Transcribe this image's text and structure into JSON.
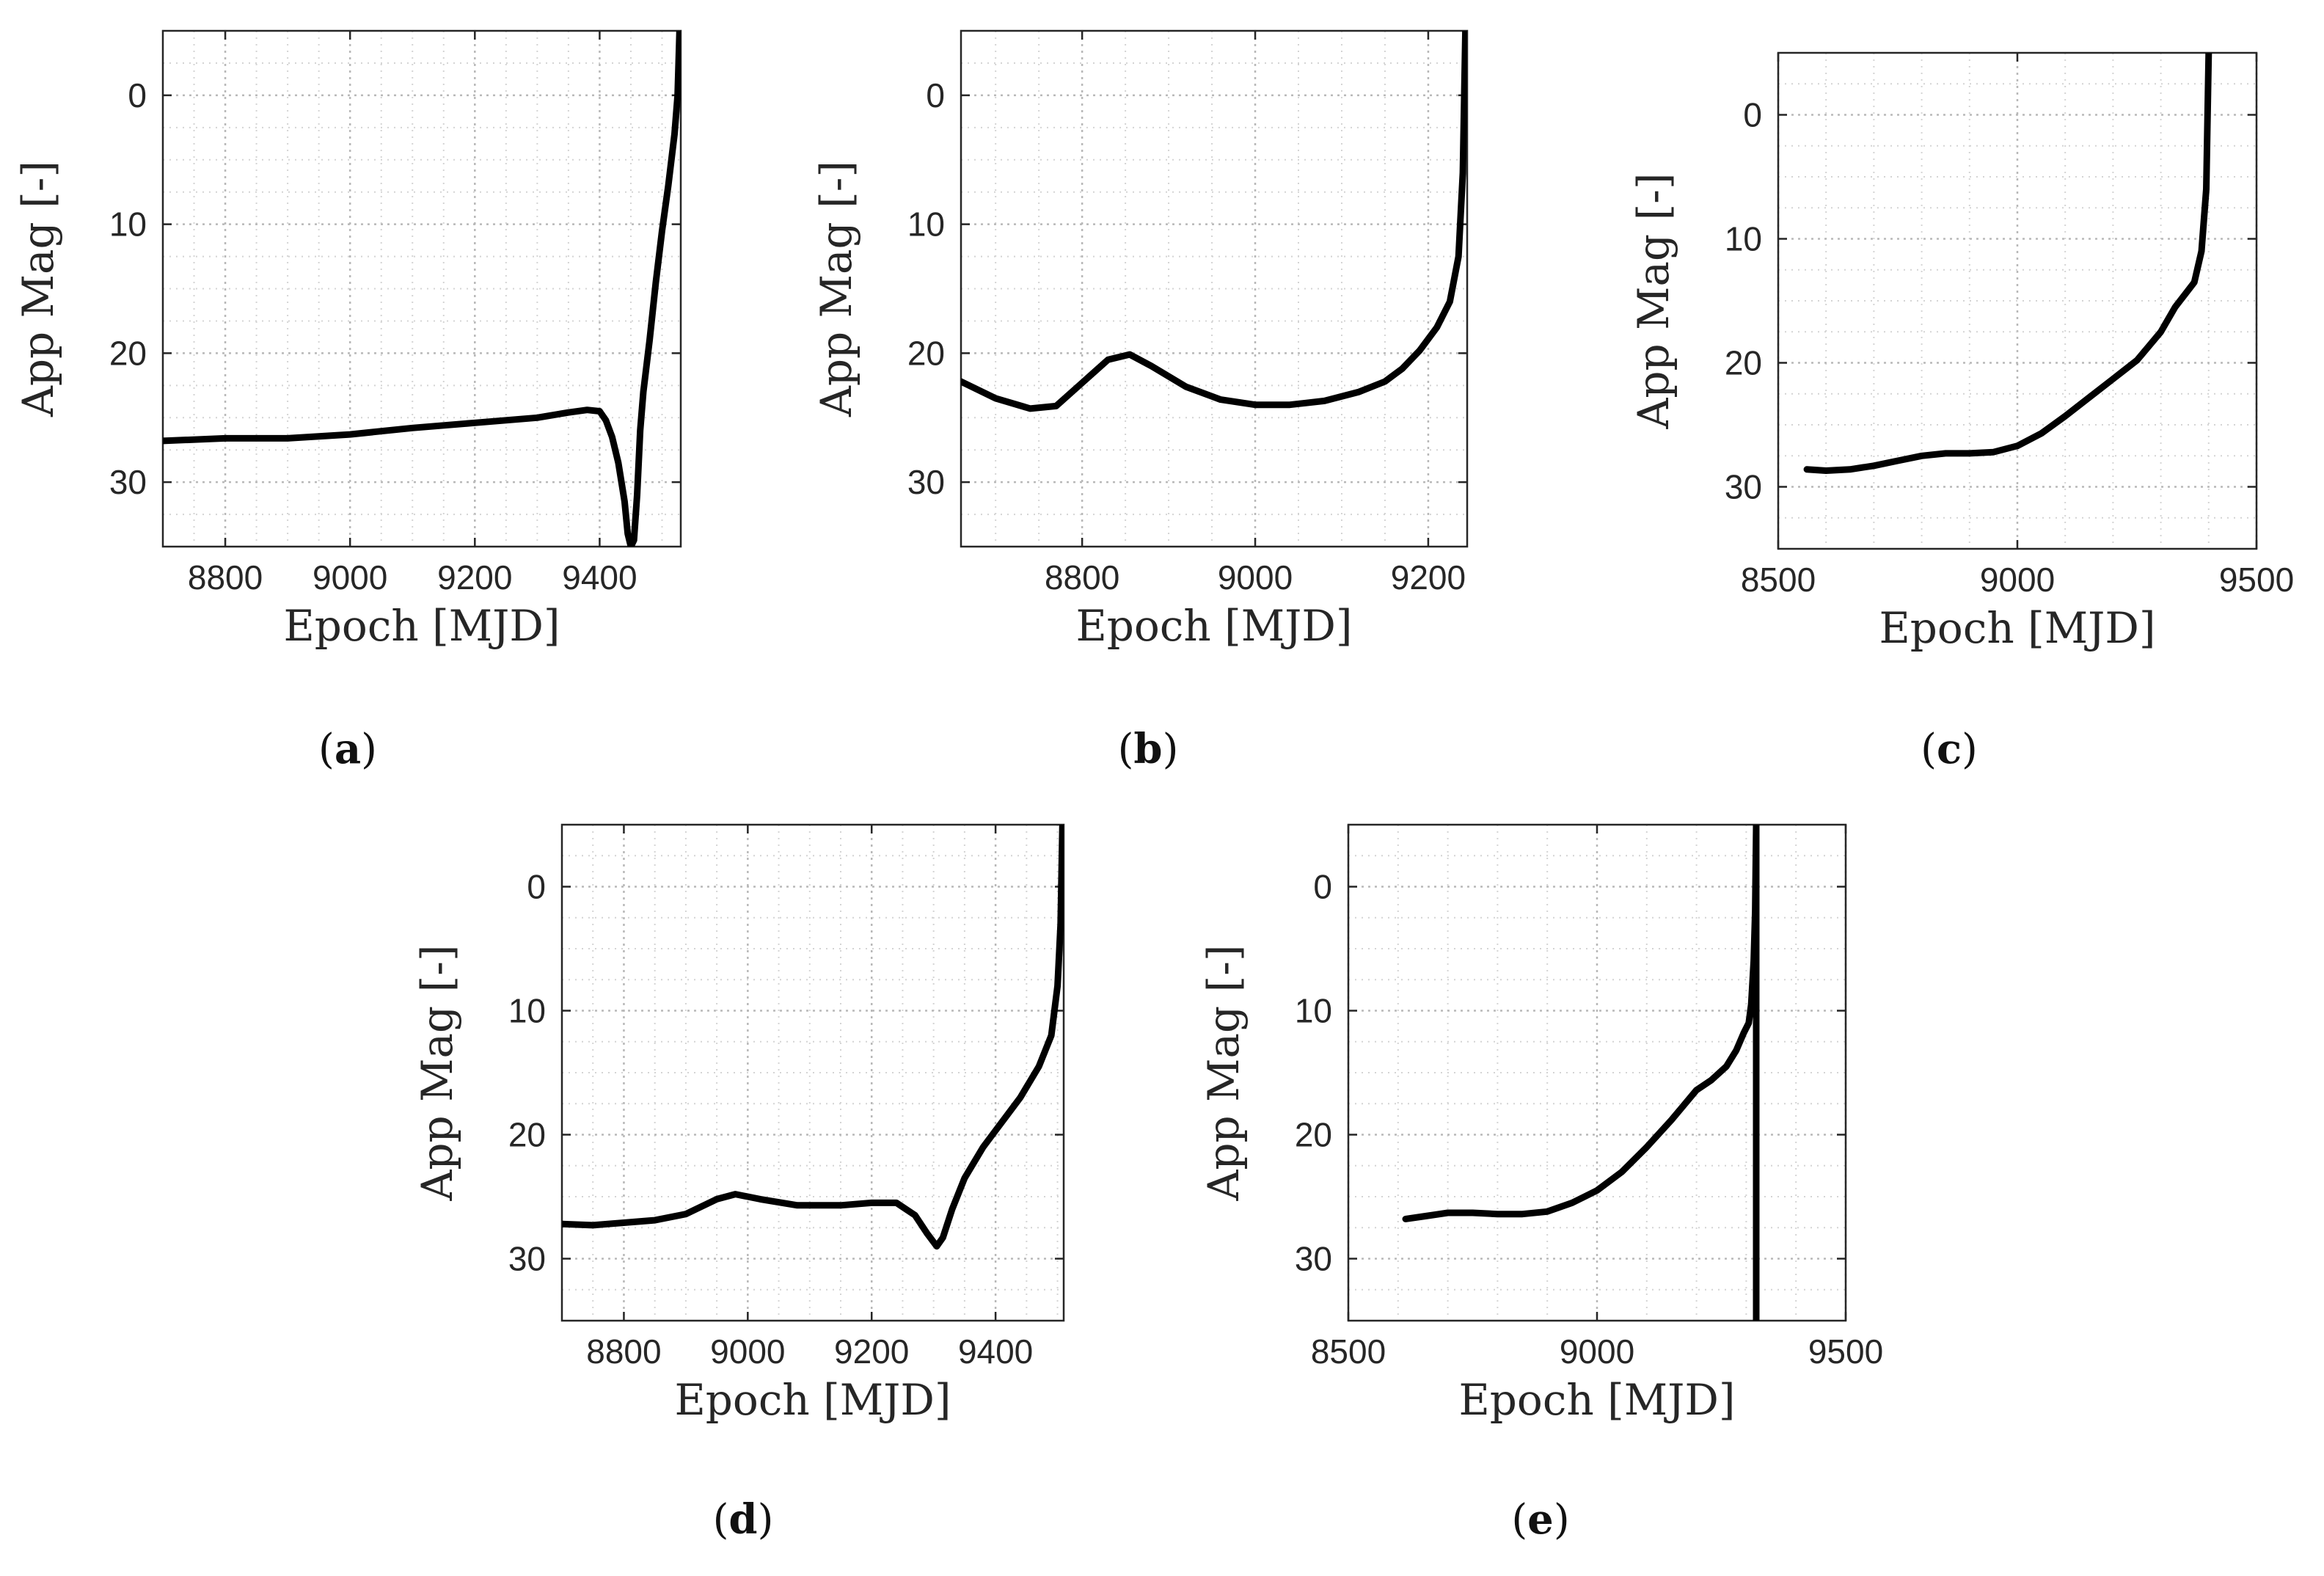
{
  "figure": {
    "panels": [
      "a",
      "b",
      "c",
      "d",
      "e"
    ]
  },
  "chart_data": [
    {
      "id": "a",
      "type": "line",
      "panel_label": "a",
      "xlabel": "Epoch [MJD]",
      "ylabel": "App Mag [-]",
      "xlim": [
        8700,
        9530
      ],
      "ylim": [
        -5,
        35
      ],
      "y_reversed": true,
      "grid": true,
      "xticks": [
        8800,
        9000,
        9200,
        9400
      ],
      "xtick_labels": [
        "8800",
        "9000",
        "9200",
        "9400"
      ],
      "yticks": [
        0,
        10,
        20,
        30
      ],
      "ytick_labels": [
        "0",
        "10",
        "20",
        "30"
      ],
      "series": [
        {
          "name": "App Mag",
          "x": [
            8700,
            8800,
            8900,
            9000,
            9100,
            9200,
            9300,
            9350,
            9380,
            9400,
            9410,
            9420,
            9430,
            9440,
            9445,
            9450,
            9455,
            9460,
            9465,
            9470,
            9480,
            9490,
            9500,
            9510,
            9520,
            9525,
            9528
          ],
          "y": [
            26.8,
            26.6,
            26.6,
            26.3,
            25.8,
            25.4,
            25.0,
            24.6,
            24.4,
            24.5,
            25.2,
            26.5,
            28.5,
            31.5,
            34.0,
            35.0,
            34.5,
            31.0,
            26.0,
            23.0,
            19.0,
            14.5,
            10.5,
            7.0,
            3.0,
            0.0,
            -5.0
          ]
        }
      ]
    },
    {
      "id": "b",
      "type": "line",
      "panel_label": "b",
      "xlabel": "Epoch [MJD]",
      "ylabel": "App Mag [-]",
      "xlim": [
        8660,
        9245
      ],
      "ylim": [
        -5,
        35
      ],
      "y_reversed": true,
      "grid": true,
      "xticks": [
        8800,
        9000,
        9200
      ],
      "xtick_labels": [
        "8800",
        "9000",
        "9200"
      ],
      "yticks": [
        0,
        10,
        20,
        30
      ],
      "ytick_labels": [
        "0",
        "10",
        "20",
        "30"
      ],
      "series": [
        {
          "name": "App Mag",
          "x": [
            8660,
            8700,
            8740,
            8770,
            8800,
            8830,
            8855,
            8880,
            8920,
            8960,
            9000,
            9040,
            9080,
            9120,
            9150,
            9170,
            9190,
            9210,
            9225,
            9235,
            9240,
            9243
          ],
          "y": [
            22.2,
            23.5,
            24.3,
            24.1,
            22.3,
            20.5,
            20.1,
            21.0,
            22.6,
            23.6,
            24.0,
            24.0,
            23.7,
            23.0,
            22.2,
            21.2,
            19.8,
            18.0,
            16.0,
            12.5,
            6.0,
            -5.0
          ]
        }
      ]
    },
    {
      "id": "c",
      "type": "line",
      "panel_label": "c",
      "xlabel": "Epoch [MJD]",
      "ylabel": "App Mag [-]",
      "xlim": [
        8500,
        9500
      ],
      "ylim": [
        -5,
        35
      ],
      "y_reversed": true,
      "grid": true,
      "xticks": [
        8500,
        9000,
        9500
      ],
      "xtick_labels": [
        "8500",
        "9000",
        "9500"
      ],
      "yticks": [
        0,
        10,
        20,
        30
      ],
      "ytick_labels": [
        "0",
        "10",
        "20",
        "30"
      ],
      "series": [
        {
          "name": "App Mag",
          "x": [
            8560,
            8600,
            8650,
            8700,
            8750,
            8800,
            8850,
            8900,
            8950,
            9000,
            9050,
            9100,
            9150,
            9200,
            9250,
            9300,
            9330,
            9350,
            9370,
            9385,
            9395,
            9400
          ],
          "y": [
            28.6,
            28.7,
            28.6,
            28.3,
            27.9,
            27.5,
            27.3,
            27.3,
            27.2,
            26.7,
            25.7,
            24.3,
            22.8,
            21.3,
            19.8,
            17.5,
            15.5,
            14.5,
            13.5,
            11.0,
            6.0,
            -5.0
          ]
        }
      ]
    },
    {
      "id": "d",
      "type": "line",
      "panel_label": "d",
      "xlabel": "Epoch [MJD]",
      "ylabel": "App Mag [-]",
      "xlim": [
        8700,
        9510
      ],
      "ylim": [
        -5,
        35
      ],
      "y_reversed": true,
      "grid": true,
      "xticks": [
        8800,
        9000,
        9200,
        9400
      ],
      "xtick_labels": [
        "8800",
        "9000",
        "9200",
        "9400"
      ],
      "yticks": [
        0,
        10,
        20,
        30
      ],
      "ytick_labels": [
        "0",
        "10",
        "20",
        "30"
      ],
      "series": [
        {
          "name": "App Mag",
          "x": [
            8700,
            8750,
            8800,
            8850,
            8900,
            8950,
            8980,
            9020,
            9080,
            9150,
            9200,
            9240,
            9270,
            9290,
            9305,
            9315,
            9330,
            9350,
            9380,
            9410,
            9440,
            9470,
            9490,
            9500,
            9505,
            9508
          ],
          "y": [
            27.2,
            27.3,
            27.1,
            26.9,
            26.4,
            25.2,
            24.8,
            25.2,
            25.7,
            25.7,
            25.5,
            25.5,
            26.5,
            28.0,
            29.0,
            28.3,
            26.0,
            23.5,
            21.0,
            19.0,
            17.0,
            14.5,
            12.0,
            8.0,
            3.0,
            -5.0
          ]
        }
      ]
    },
    {
      "id": "e",
      "type": "line",
      "panel_label": "e",
      "xlabel": "Epoch [MJD]",
      "ylabel": "App Mag [-]",
      "xlim": [
        8500,
        9500
      ],
      "ylim": [
        -5,
        35
      ],
      "y_reversed": true,
      "grid": true,
      "xticks": [
        8500,
        9000,
        9500
      ],
      "xtick_labels": [
        "8500",
        "9000",
        "9500"
      ],
      "yticks": [
        0,
        10,
        20,
        30
      ],
      "ytick_labels": [
        "0",
        "10",
        "20",
        "30"
      ],
      "series": [
        {
          "name": "App Mag",
          "x": [
            8615,
            8650,
            8700,
            8750,
            8800,
            8850,
            8900,
            8950,
            9000,
            9050,
            9100,
            9150,
            9200,
            9230,
            9260,
            9280,
            9295,
            9305,
            9310,
            9315,
            9318,
            9320,
            9320,
            9320
          ],
          "y": [
            26.8,
            26.6,
            26.3,
            26.3,
            26.4,
            26.4,
            26.2,
            25.5,
            24.5,
            23.0,
            21.0,
            18.8,
            16.4,
            15.6,
            14.5,
            13.2,
            11.8,
            11.0,
            9.5,
            6.0,
            2.0,
            -5.0,
            15.0,
            35.0
          ]
        }
      ]
    }
  ]
}
